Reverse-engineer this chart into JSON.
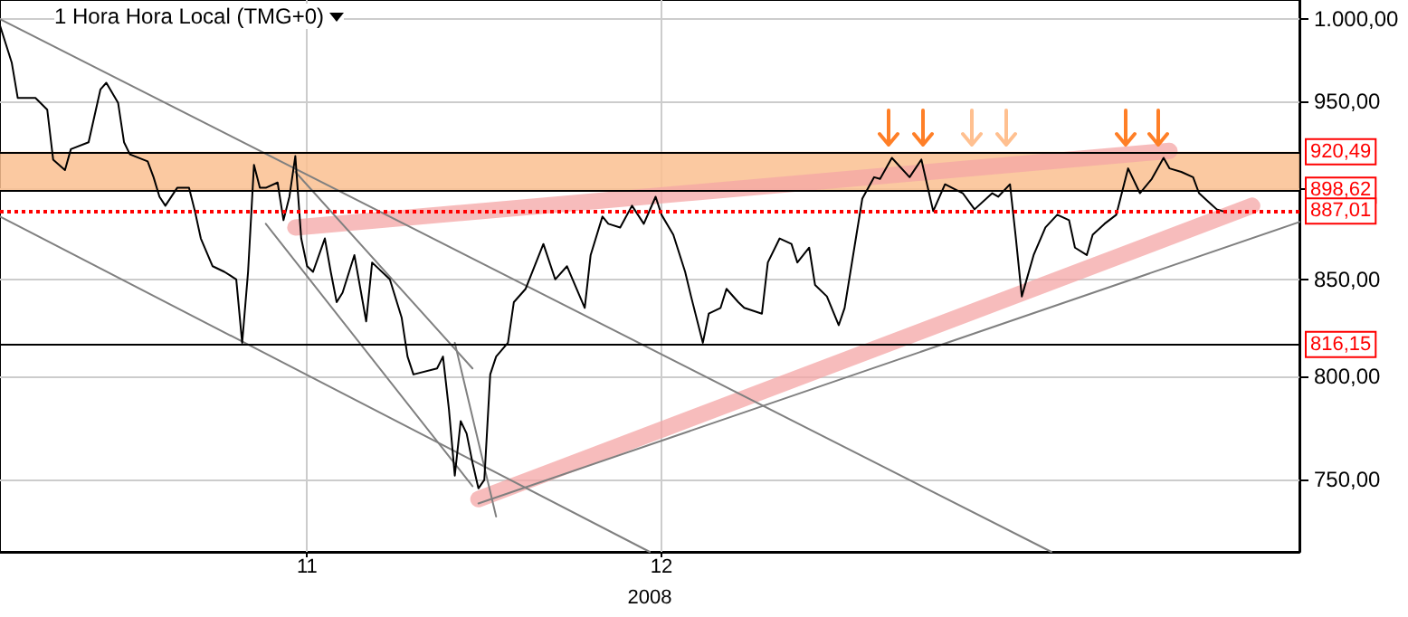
{
  "chart_data": {
    "type": "line",
    "title": "1 Hora Hora Local (TMG+0)",
    "xlabel": "2008",
    "marker": "none",
    "grid": true,
    "log": true,
    "xlim": [
      "2008-10-06",
      "2009-01-24"
    ],
    "xticks": [
      {
        "value": "2008-11-01",
        "label": "11"
      },
      {
        "value": "2008-12-01",
        "label": "12"
      }
    ],
    "ylim": [
      717,
      1012
    ],
    "yticks": [
      {
        "value": 750,
        "label": "750,00"
      },
      {
        "value": 800,
        "label": "800,00"
      },
      {
        "value": 850,
        "label": "850,00"
      },
      {
        "value": 900,
        "label": null
      },
      {
        "value": 950,
        "label": "950,00"
      },
      {
        "value": 1000,
        "label": "1.000,00"
      }
    ],
    "bands": [
      {
        "axis": "y",
        "from": 898.62,
        "to": 920.49,
        "color": "#fac090"
      }
    ],
    "ref_lines": [
      {
        "axis": "y",
        "value": 920.49,
        "label": "920,49",
        "color": "#000000",
        "line_style": "solid"
      },
      {
        "axis": "y",
        "value": 898.62,
        "label": "898,62",
        "color": "#000000",
        "line_style": "solid"
      },
      {
        "axis": "y",
        "value": 887.01,
        "label": "887,01",
        "color": "#ff0000",
        "line_style": "dotted"
      },
      {
        "axis": "y",
        "value": 816.15,
        "label": "816,15",
        "color": "#000000",
        "line_style": "solid"
      }
    ],
    "series": [
      {
        "type": "line",
        "color": "#808080",
        "x": [
          "2008-10-06",
          "2009-01-03"
        ],
        "values": [
          1000,
          717
        ]
      },
      {
        "type": "line",
        "color": "#808080",
        "x": [
          "2008-10-06",
          "2008-11-30"
        ],
        "values": [
          884,
          717
        ]
      },
      {
        "type": "line",
        "color": "#808080",
        "x": [
          "2008-10-28T12:00",
          "2008-11-15"
        ],
        "values": [
          880,
          747
        ]
      },
      {
        "type": "line",
        "color": "#808080",
        "x": [
          "2008-10-31",
          "2008-11-15"
        ],
        "values": [
          909,
          804
        ]
      },
      {
        "type": "line",
        "color": "#808080",
        "x": [
          "2008-11-13T12:00",
          "2008-11-17"
        ],
        "values": [
          817,
          733
        ]
      },
      {
        "type": "line",
        "color": "#808080",
        "x": [
          "2008-11-15T12:00",
          "2009-01-24"
        ],
        "values": [
          739,
          881
        ]
      },
      {
        "type": "line",
        "color": "#f4a6a6",
        "x": [
          "2008-10-31",
          "2009-01-13"
        ],
        "values": [
          878,
          921
        ]
      },
      {
        "type": "line",
        "color": "#f4a6a6",
        "x": [
          "2008-11-15T12:00",
          "2009-01-20"
        ],
        "values": [
          741,
          890
        ]
      },
      {
        "color": "#000000",
        "x": [
          "2008-10-06",
          "2008-10-07",
          "2008-10-07T12:00",
          "2008-10-09",
          "2008-10-10",
          "2008-10-10T12:00",
          "2008-10-11T12:00",
          "2008-10-12",
          "2008-10-13T12:00",
          "2008-10-14T12:00",
          "2008-10-15",
          "2008-10-16",
          "2008-10-16T12:00",
          "2008-10-17",
          "2008-10-18T12:00",
          "2008-10-19",
          "2008-10-19T12:00",
          "2008-10-20",
          "2008-10-21",
          "2008-10-22",
          "2008-10-22T12:00",
          "2008-10-23",
          "2008-10-24",
          "2008-10-25",
          "2008-10-26",
          "2008-10-26T12:00",
          "2008-10-27",
          "2008-10-27T12:00",
          "2008-10-28",
          "2008-10-28T12:00",
          "2008-10-29T12:00",
          "2008-10-30",
          "2008-10-30T12:00",
          "2008-10-31",
          "2008-10-31T12:00",
          "2008-11-01",
          "2008-11-01T12:00",
          "2008-11-02T12:00",
          "2008-11-03",
          "2008-11-03T12:00",
          "2008-11-04",
          "2008-11-05",
          "2008-11-06",
          "2008-11-06T12:00",
          "2008-11-08",
          "2008-11-09",
          "2008-11-09T12:00",
          "2008-11-10",
          "2008-11-12",
          "2008-11-12T12:00",
          "2008-11-13",
          "2008-11-13T12:00",
          "2008-11-14",
          "2008-11-14T12:00",
          "2008-11-15",
          "2008-11-15T12:00",
          "2008-11-16",
          "2008-11-16T12:00",
          "2008-11-17",
          "2008-11-18",
          "2008-11-18T12:00",
          "2008-11-19T12:00",
          "2008-11-21",
          "2008-11-22",
          "2008-11-23",
          "2008-11-24T12:00",
          "2008-11-25",
          "2008-11-26",
          "2008-11-26T12:00",
          "2008-11-27T12:00",
          "2008-11-28T12:00",
          "2008-11-29T12:00",
          "2008-11-30T12:00",
          "2008-12-01",
          "2008-12-02",
          "2008-12-03",
          "2008-12-03T12:00",
          "2008-12-04T12:00",
          "2008-12-05",
          "2008-12-06",
          "2008-12-06T12:00",
          "2008-12-07T12:00",
          "2008-12-08",
          "2008-12-09T12:00",
          "2008-12-10",
          "2008-12-11",
          "2008-12-12",
          "2008-12-12T12:00",
          "2008-12-13T12:00",
          "2008-12-14",
          "2008-12-15",
          "2008-12-16",
          "2008-12-16T12:00",
          "2008-12-17T12:00",
          "2008-12-18",
          "2008-12-19",
          "2008-12-19T12:00",
          "2008-12-20T12:00",
          "2008-12-22",
          "2008-12-23",
          "2008-12-24",
          "2008-12-25",
          "2008-12-26T12:00",
          "2008-12-27T12:00",
          "2008-12-29",
          "2008-12-29T12:00",
          "2008-12-30T12:00",
          "2008-12-31",
          "2008-12-31T12:00",
          "2009-01-01T12:00",
          "2009-01-02T12:00",
          "2009-01-03T12:00",
          "2009-01-04T12:00",
          "2009-01-05",
          "2009-01-06",
          "2009-01-06T12:00",
          "2009-01-07T12:00",
          "2009-01-08T12:00",
          "2009-01-09T12:00",
          "2009-01-10T12:00",
          "2009-01-11T12:00",
          "2009-01-12T12:00",
          "2009-01-13",
          "2009-01-14",
          "2009-01-15",
          "2009-01-15T12:00",
          "2009-01-16T12:00",
          "2009-01-17",
          "2009-01-17T12:00"
        ],
        "values": [
          996,
          973,
          952,
          952,
          945,
          916,
          910,
          922,
          926,
          957,
          961,
          949,
          926,
          919,
          915,
          906,
          895,
          890,
          900,
          900,
          887,
          872,
          857,
          854,
          850,
          817,
          854,
          913,
          900,
          900,
          903,
          882,
          895,
          918,
          872,
          857,
          854,
          872,
          854,
          838,
          843,
          863,
          828,
          859,
          850,
          830,
          810,
          801,
          804,
          810,
          784,
          752,
          778,
          772,
          758,
          746,
          750,
          801,
          810,
          817,
          838,
          845,
          869,
          850,
          857,
          835,
          863,
          884,
          880,
          878,
          890,
          880,
          895,
          885,
          874,
          854,
          841,
          817,
          832,
          835,
          845,
          838,
          835,
          832,
          859,
          872,
          869,
          859,
          867,
          847,
          841,
          826,
          835,
          874,
          894,
          906,
          905,
          917,
          906,
          916,
          887,
          902,
          897,
          888,
          897,
          895,
          902,
          872,
          841,
          863,
          878,
          885,
          882,
          867,
          863,
          874,
          880,
          885,
          911,
          897,
          905,
          917,
          911,
          909,
          906,
          897,
          891,
          888,
          887
        ]
      }
    ]
  }
}
